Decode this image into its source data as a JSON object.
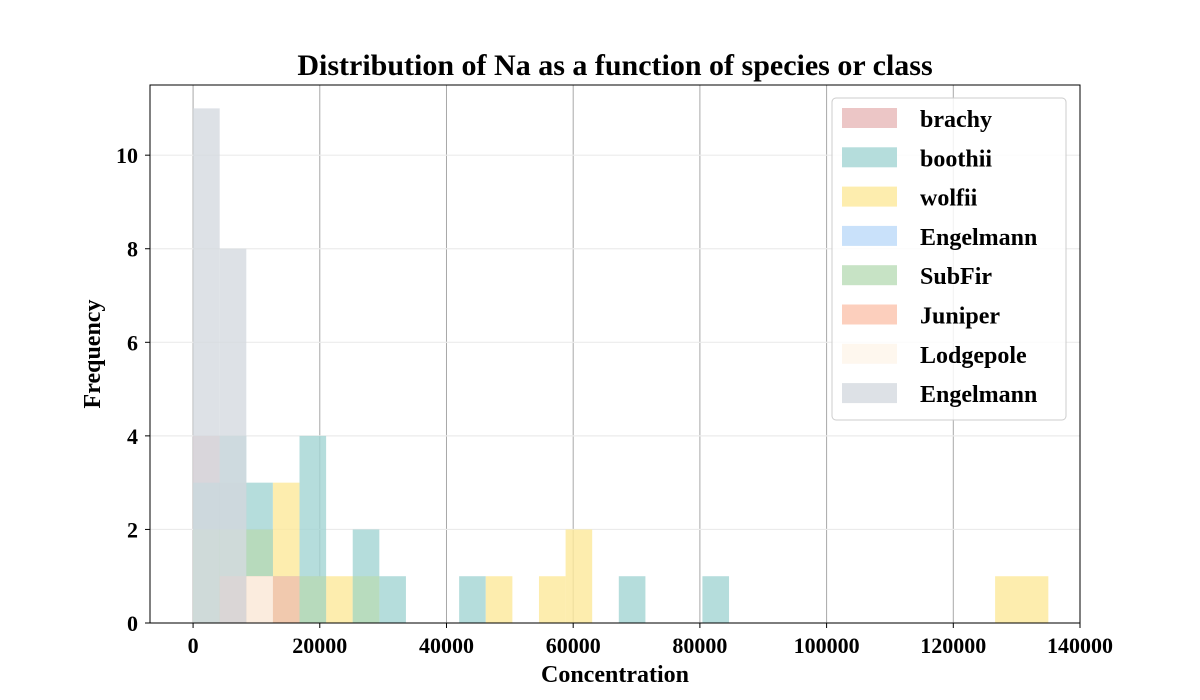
{
  "chart_data": {
    "type": "bar",
    "title": "Distribution of Na as a function of species or class",
    "xlabel": "Concentration",
    "ylabel": "Frequency",
    "xlim": [
      -6800,
      140000
    ],
    "ylim": [
      0,
      11.5
    ],
    "xticks": [
      0,
      20000,
      40000,
      60000,
      80000,
      100000,
      120000,
      140000
    ],
    "yticks": [
      0,
      2,
      4,
      6,
      8,
      10
    ],
    "grid": {
      "x": true,
      "y": true
    },
    "legend_position": "top-right",
    "bin_width": 4200,
    "series": [
      {
        "name": "brachy",
        "color": "#e7b8b8",
        "bins": [
          {
            "x0": 0,
            "x1": 4200,
            "count": 4
          },
          {
            "x0": 4200,
            "x1": 8400,
            "count": 3
          },
          {
            "x0": 8400,
            "x1": 12600,
            "count": 2
          },
          {
            "x0": 16800,
            "x1": 21000,
            "count": 1
          }
        ]
      },
      {
        "name": "boothii",
        "color": "#a3d5d3",
        "bins": [
          {
            "x0": 0,
            "x1": 4200,
            "count": 3
          },
          {
            "x0": 4200,
            "x1": 8400,
            "count": 4
          },
          {
            "x0": 8400,
            "x1": 12600,
            "count": 3
          },
          {
            "x0": 16800,
            "x1": 21000,
            "count": 4
          },
          {
            "x0": 25200,
            "x1": 29400,
            "count": 2
          },
          {
            "x0": 29400,
            "x1": 33600,
            "count": 1
          },
          {
            "x0": 42000,
            "x1": 46200,
            "count": 1
          },
          {
            "x0": 67200,
            "x1": 71400,
            "count": 1
          },
          {
            "x0": 80400,
            "x1": 84600,
            "count": 1
          }
        ]
      },
      {
        "name": "wolfii",
        "color": "#fde99a",
        "bins": [
          {
            "x0": 12600,
            "x1": 16800,
            "count": 3
          },
          {
            "x0": 21000,
            "x1": 25200,
            "count": 1
          },
          {
            "x0": 46200,
            "x1": 50400,
            "count": 1
          },
          {
            "x0": 54600,
            "x1": 58800,
            "count": 1
          },
          {
            "x0": 58800,
            "x1": 63000,
            "count": 2
          },
          {
            "x0": 126600,
            "x1": 135000,
            "count": 1
          }
        ]
      },
      {
        "name": "Engelmann",
        "color": "#bbdaf9",
        "bins": []
      },
      {
        "name": "SubFir",
        "color": "#b9dcb7",
        "bins": [
          {
            "x0": 0,
            "x1": 4200,
            "count": 2
          },
          {
            "x0": 4200,
            "x1": 8400,
            "count": 2
          },
          {
            "x0": 8400,
            "x1": 12600,
            "count": 2
          },
          {
            "x0": 12600,
            "x1": 16800,
            "count": 1
          },
          {
            "x0": 16800,
            "x1": 21000,
            "count": 1
          },
          {
            "x0": 25200,
            "x1": 29400,
            "count": 1
          }
        ]
      },
      {
        "name": "Juniper",
        "color": "#fbc3ad",
        "bins": [
          {
            "x0": 4200,
            "x1": 8400,
            "count": 1
          },
          {
            "x0": 8400,
            "x1": 12600,
            "count": 1
          },
          {
            "x0": 12600,
            "x1": 16800,
            "count": 1
          }
        ]
      },
      {
        "name": "Lodgepole",
        "color": "#fef5ea",
        "bins": [
          {
            "x0": 8400,
            "x1": 12600,
            "count": 1
          }
        ]
      },
      {
        "name": "Engelmann",
        "color": "#d5d9e0",
        "bins": [
          {
            "x0": 0,
            "x1": 4200,
            "count": 11
          },
          {
            "x0": 4200,
            "x1": 8400,
            "count": 8
          }
        ]
      }
    ]
  }
}
